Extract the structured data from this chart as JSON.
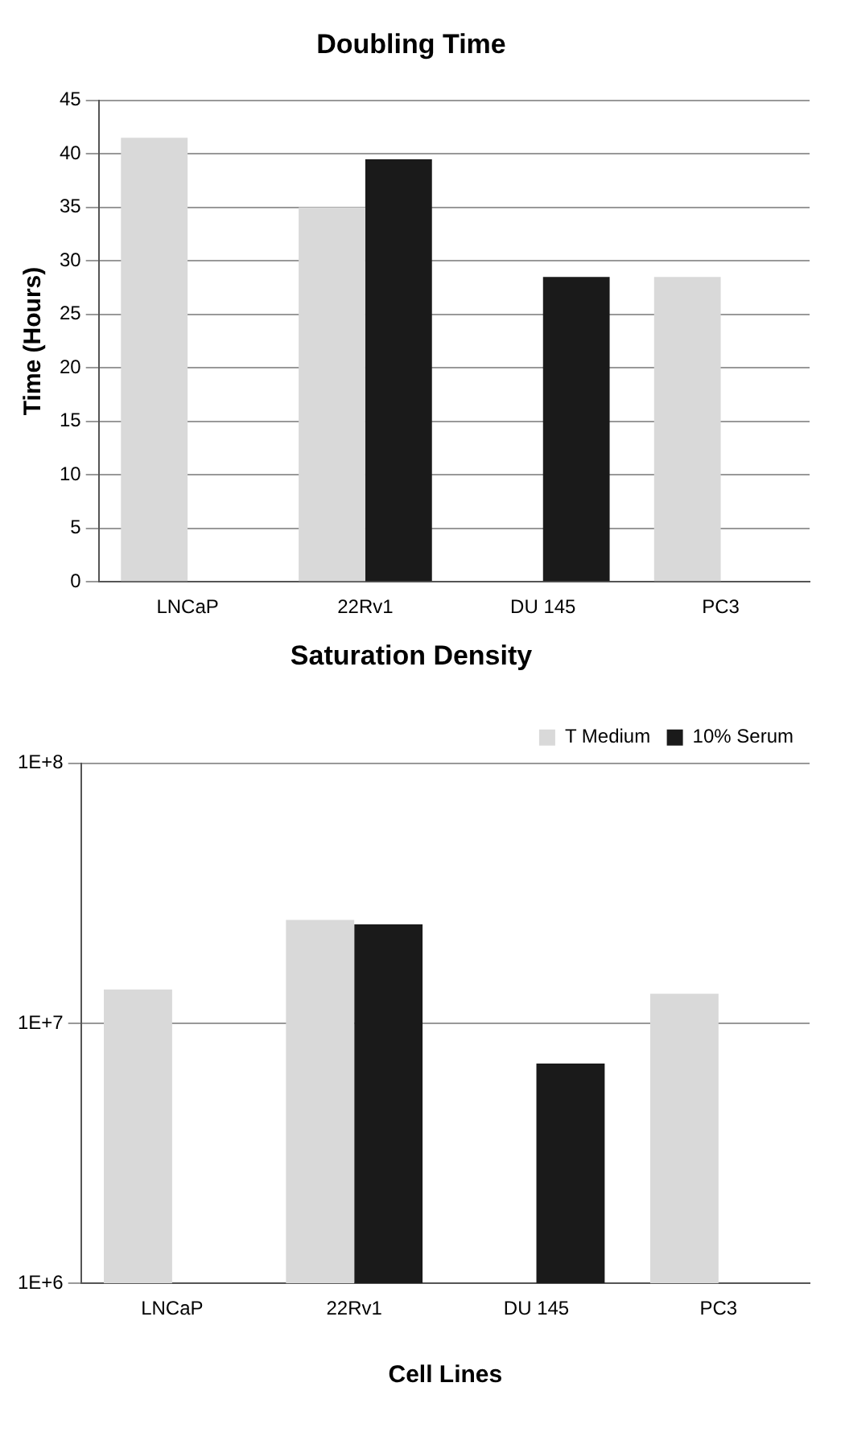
{
  "chart_data": [
    {
      "type": "bar",
      "title": "Doubling Time",
      "ylabel": "Time (Hours)",
      "categories": [
        "LNCaP",
        "22Rv1",
        "DU 145",
        "PC3"
      ],
      "series": [
        {
          "color": "#d9d9d9",
          "values": [
            41.5,
            35,
            null,
            28.5
          ]
        },
        {
          "color": "#1a1a1a",
          "values": [
            null,
            39.5,
            28.5,
            null
          ]
        }
      ],
      "ylim": [
        0,
        45
      ],
      "yticks": [
        0,
        5,
        10,
        15,
        20,
        25,
        30,
        35,
        40,
        45
      ],
      "grid": "y",
      "legend": false
    },
    {
      "type": "bar",
      "title": "Saturation Density",
      "xlabel": "Cell Lines",
      "categories": [
        "LNCaP",
        "22Rv1",
        "DU 145",
        "PC3"
      ],
      "series": [
        {
          "name": "T Medium",
          "color": "#d9d9d9",
          "values": [
            13500000,
            25000000,
            null,
            13000000
          ]
        },
        {
          "name": "10% Serum",
          "color": "#1a1a1a",
          "values": [
            null,
            24000000,
            7000000,
            null
          ]
        }
      ],
      "ylim": [
        1000000,
        100000000
      ],
      "yticks": [
        {
          "value": 1000000,
          "label": "1E+6"
        },
        {
          "value": 10000000,
          "label": "1E+7"
        },
        {
          "value": 100000000,
          "label": "1E+8"
        }
      ],
      "log": "y",
      "grid": "y",
      "legend": "top right"
    }
  ]
}
